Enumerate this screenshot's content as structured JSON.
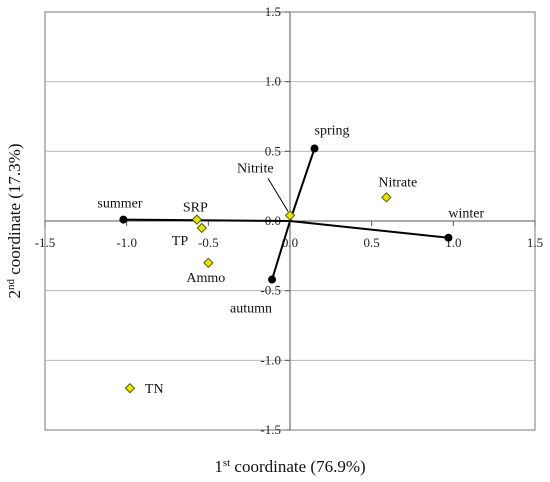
{
  "chart_data": {
    "type": "scatter",
    "title": "",
    "xlabel": {
      "prefix": "1",
      "sup": "st",
      "text": " coordinate (76.9%)"
    },
    "ylabel": {
      "prefix": "2",
      "sup": "nd",
      "text": " coordinate (17.3%)"
    },
    "xlim": [
      -1.5,
      1.5
    ],
    "ylim": [
      -1.5,
      1.5
    ],
    "grid": true,
    "x_ticks": [
      {
        "v": -1.5,
        "t": "-1.5"
      },
      {
        "v": -1.0,
        "t": "-1.0"
      },
      {
        "v": -0.5,
        "t": "-0.5"
      },
      {
        "v": 0.0,
        "t": "0.0"
      },
      {
        "v": 0.5,
        "t": "0.5"
      },
      {
        "v": 1.0,
        "t": "1.0"
      },
      {
        "v": 1.5,
        "t": "1.5"
      }
    ],
    "y_ticks": [
      {
        "v": 1.5,
        "t": "1.5"
      },
      {
        "v": 1.0,
        "t": "1.0"
      },
      {
        "v": 0.5,
        "t": "0.5"
      },
      {
        "v": 0.0,
        "t": "0.0"
      },
      {
        "v": -0.5,
        "t": "-0.5"
      },
      {
        "v": -1.0,
        "t": "-1.0"
      },
      {
        "v": -1.5,
        "t": "-1.5"
      }
    ],
    "seasons": [
      {
        "name": "spring",
        "x": 0.15,
        "y": 0.52
      },
      {
        "name": "summer",
        "x": -1.02,
        "y": 0.01
      },
      {
        "name": "autumn",
        "x": -0.11,
        "y": -0.42
      },
      {
        "name": "winter",
        "x": 0.97,
        "y": -0.12
      }
    ],
    "variables": [
      {
        "name": "Nitrite",
        "x": 0.0,
        "y": 0.04
      },
      {
        "name": "Nitrate",
        "x": 0.59,
        "y": 0.17
      },
      {
        "name": "SRP",
        "x": -0.57,
        "y": 0.01
      },
      {
        "name": "TP",
        "x": -0.54,
        "y": -0.05
      },
      {
        "name": "Ammo",
        "x": -0.5,
        "y": -0.3
      },
      {
        "name": "TN",
        "x": -0.98,
        "y": -1.2
      }
    ],
    "colors": {
      "season_marker": "#000000",
      "variable_fill": "#e6e600",
      "variable_stroke": "#555500",
      "grid": "#b8b8b8",
      "line": "#000000"
    }
  }
}
